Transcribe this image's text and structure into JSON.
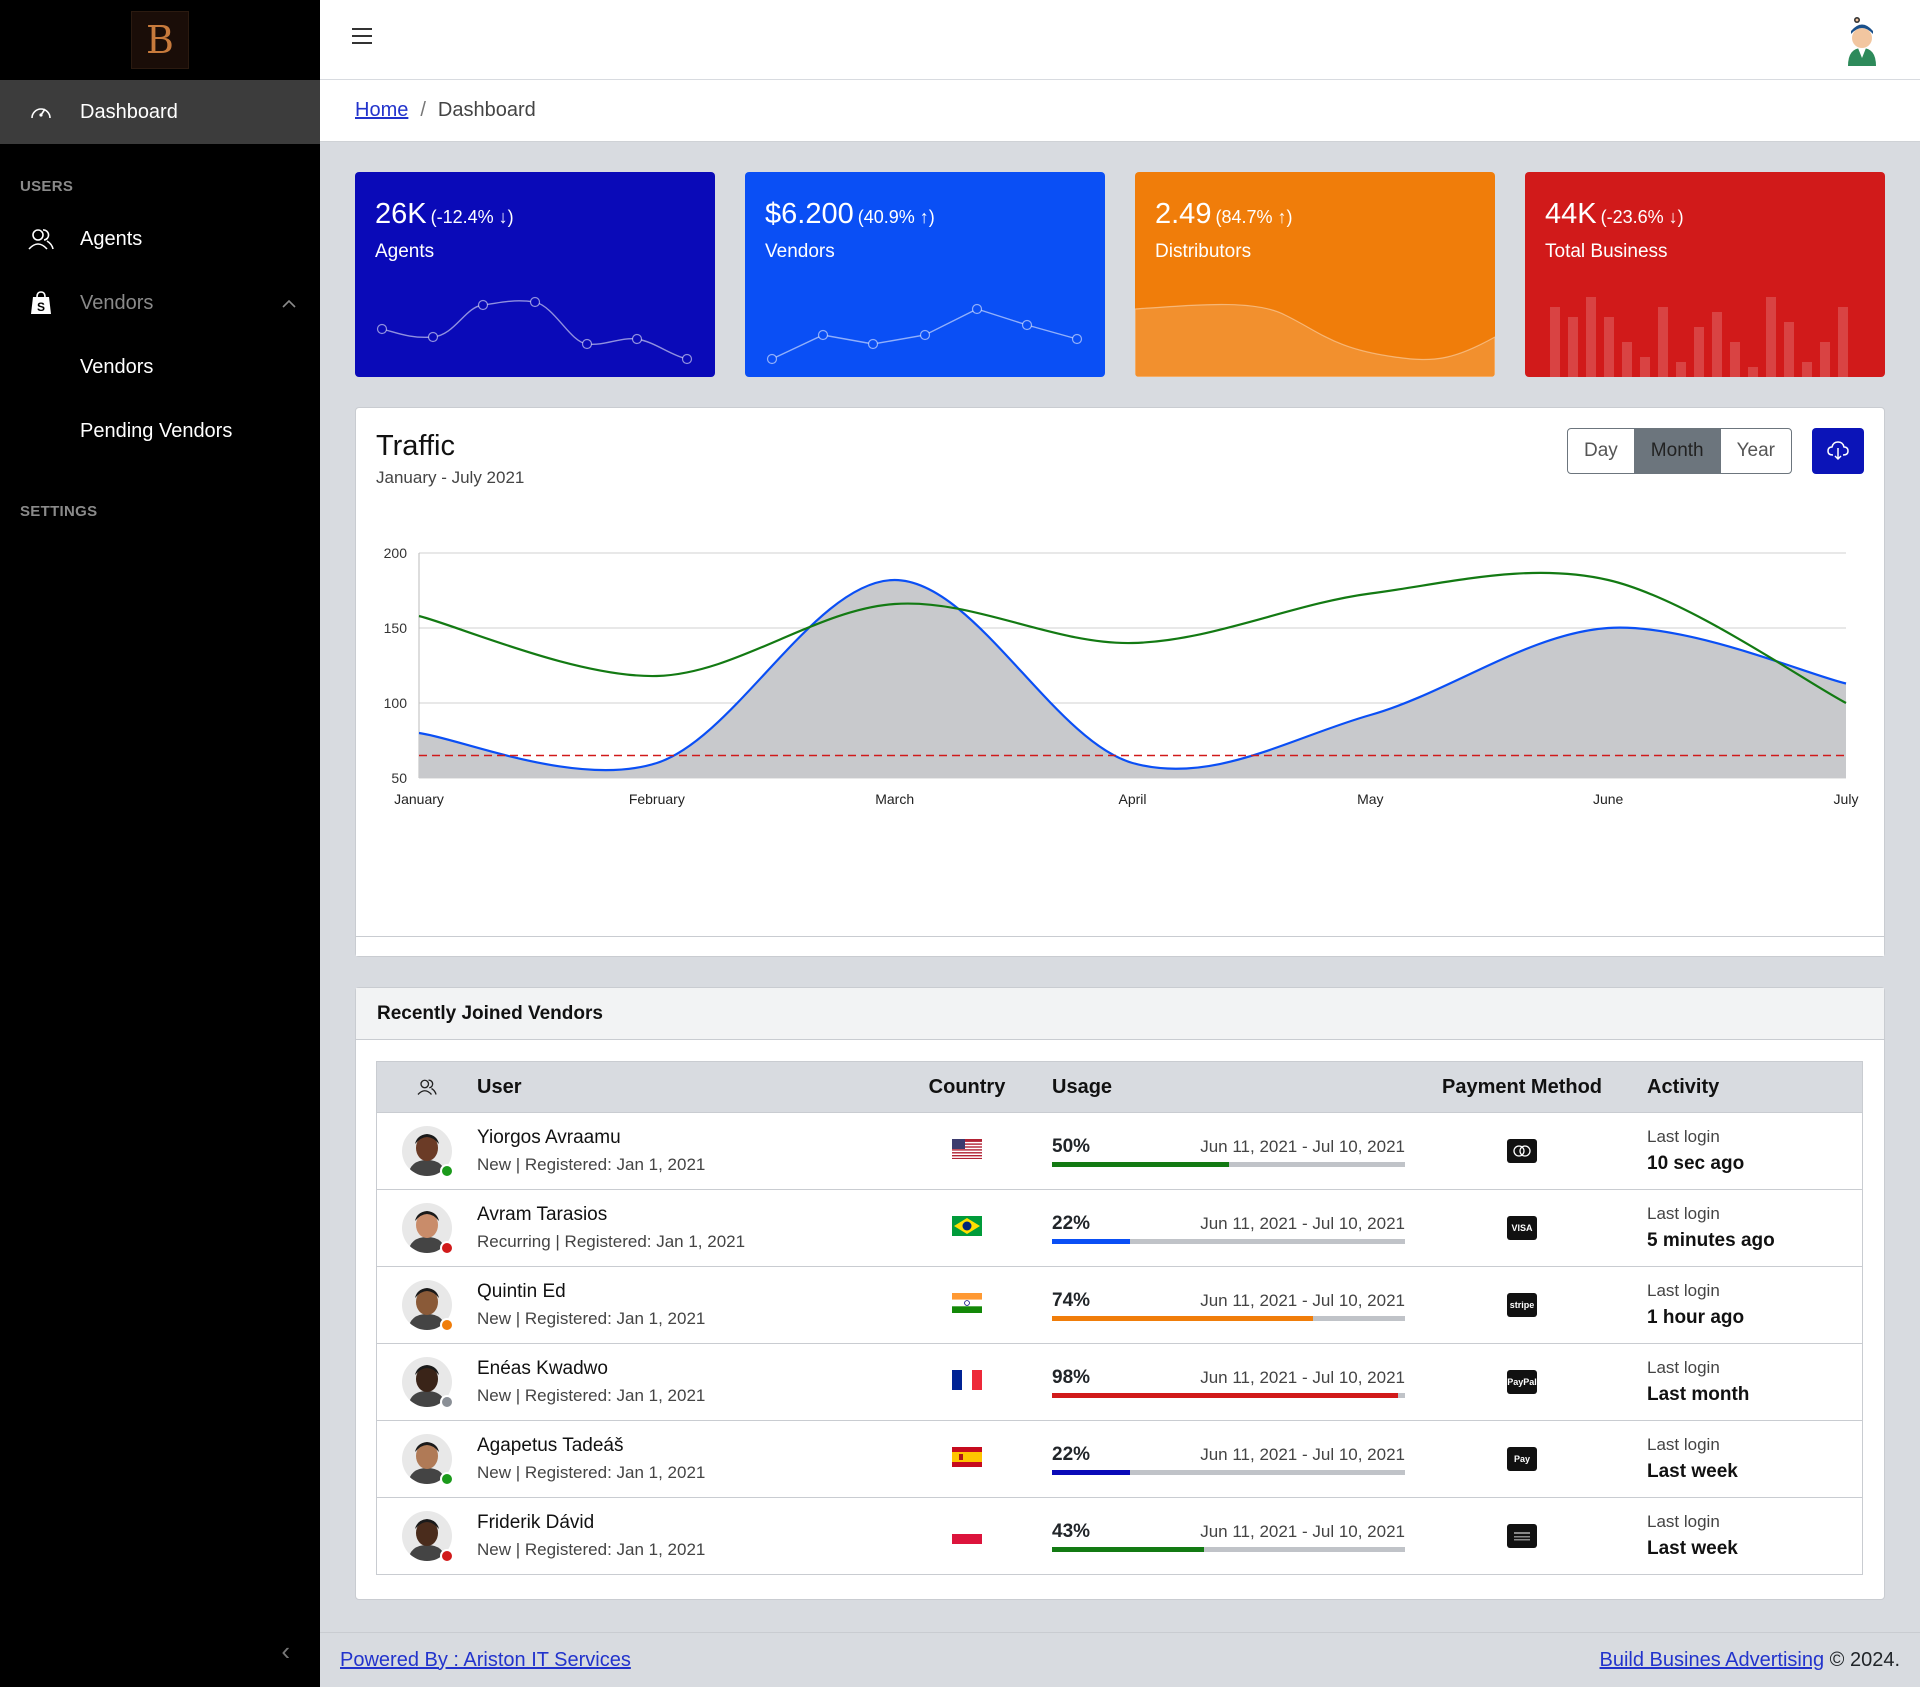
{
  "sidebar": {
    "brand_letter": "B",
    "dashboard_label": "Dashboard",
    "users_title": "USERS",
    "agents_label": "Agents",
    "vendors_group_label": "Vendors",
    "vendors_sub_label": "Vendors",
    "pending_vendors_label": "Pending Vendors",
    "settings_title": "SETTINGS",
    "toggler": "‹"
  },
  "breadcrumb": {
    "home": "Home",
    "separator": "/",
    "current": "Dashboard"
  },
  "stats": [
    {
      "value": "26K",
      "change": "(-12.4% ↓)",
      "label": "Agents",
      "color": "#0a0ab8"
    },
    {
      "value": "$6.200",
      "change": "(40.9% ↑)",
      "label": "Vendors",
      "color": "#0a4ff5"
    },
    {
      "value": "2.49",
      "change": "(84.7% ↑)",
      "label": "Distributors",
      "color": "#f07d0a"
    },
    {
      "value": "44K",
      "change": "(-23.6% ↓)",
      "label": "Total Business",
      "color": "#d11a1a"
    }
  ],
  "traffic": {
    "title": "Traffic",
    "subtitle": "January - July 2021",
    "buttons": [
      "Day",
      "Month",
      "Year"
    ],
    "active_button": "Month"
  },
  "chart_data": {
    "type": "line",
    "categories": [
      "January",
      "February",
      "March",
      "April",
      "May",
      "June",
      "July"
    ],
    "ylim": [
      50,
      200
    ],
    "y_ticks": [
      50,
      100,
      150,
      200
    ],
    "grid": true,
    "legend": "none",
    "series": [
      {
        "values": [
          80,
          60,
          182,
          60,
          92,
          150,
          113
        ],
        "color": "#0a4ff5",
        "fill": "#c8c9cc"
      },
      {
        "values": [
          158,
          118,
          166,
          140,
          173,
          182,
          100
        ],
        "color": "#137a13"
      },
      {
        "values": [
          65,
          65,
          65,
          65,
          65,
          65,
          65
        ],
        "color": "#d11a1a",
        "dashed": true
      }
    ]
  },
  "vendors": {
    "title": "Recently Joined Vendors",
    "columns": {
      "user": "User",
      "country": "Country",
      "usage": "Usage",
      "payment": "Payment Method",
      "activity": "Activity"
    },
    "rows": [
      {
        "name": "Yiorgos Avraamu",
        "sub": "New | Registered: Jan 1, 2021",
        "country": "us",
        "usage_text": "50%",
        "usage": 50,
        "bar_color": "#137a13",
        "range": "Jun 11, 2021 - Jul 10, 2021",
        "pay": "mastercard",
        "pay_text": "",
        "act_label": "Last login",
        "act_value": "10 sec ago",
        "status_color": "#1b9a1b",
        "skin": "#6b3b26"
      },
      {
        "name": "Avram Tarasios",
        "sub": "Recurring | Registered: Jan 1, 2021",
        "country": "br",
        "usage_text": "22%",
        "usage": 22,
        "bar_color": "#0a4ff5",
        "range": "Jun 11, 2021 - Jul 10, 2021",
        "pay": "visa",
        "pay_text": "VISA",
        "act_label": "Last login",
        "act_value": "5 minutes ago",
        "status_color": "#d11a1a",
        "skin": "#c98c6a"
      },
      {
        "name": "Quintin Ed",
        "sub": "New | Registered: Jan 1, 2021",
        "country": "in",
        "usage_text": "74%",
        "usage": 74,
        "bar_color": "#f07d0a",
        "range": "Jun 11, 2021 - Jul 10, 2021",
        "pay": "stripe",
        "pay_text": "stripe",
        "act_label": "Last login",
        "act_value": "1 hour ago",
        "status_color": "#f07d0a",
        "skin": "#8a5a38"
      },
      {
        "name": "Enéas Kwadwo",
        "sub": "New | Registered: Jan 1, 2021",
        "country": "fr",
        "usage_text": "98%",
        "usage": 98,
        "bar_color": "#d11a1a",
        "range": "Jun 11, 2021 - Jul 10, 2021",
        "pay": "paypal",
        "pay_text": "PayPal",
        "act_label": "Last login",
        "act_value": "Last month",
        "status_color": "#8a8f96",
        "skin": "#3a2418"
      },
      {
        "name": "Agapetus Tadeáš",
        "sub": "New | Registered: Jan 1, 2021",
        "country": "es",
        "usage_text": "22%",
        "usage": 22,
        "bar_color": "#0a0ab8",
        "range": "Jun 11, 2021 - Jul 10, 2021",
        "pay": "applepay",
        "pay_text": "Pay",
        "act_label": "Last login",
        "act_value": "Last week",
        "status_color": "#1b9a1b",
        "skin": "#b07a56"
      },
      {
        "name": "Friderik Dávid",
        "sub": "New | Registered: Jan 1, 2021",
        "country": "pl",
        "usage_text": "43%",
        "usage": 43,
        "bar_color": "#137a13",
        "range": "Jun 11, 2021 - Jul 10, 2021",
        "pay": "amex",
        "pay_text": "",
        "act_label": "Last login",
        "act_value": "Last week",
        "status_color": "#d11a1a",
        "skin": "#4a2c1c"
      }
    ]
  },
  "footer": {
    "left_link": "Powered By : Ariston IT Services",
    "right_link": "Build Busines Advertising",
    "right_text": "© 2024."
  }
}
